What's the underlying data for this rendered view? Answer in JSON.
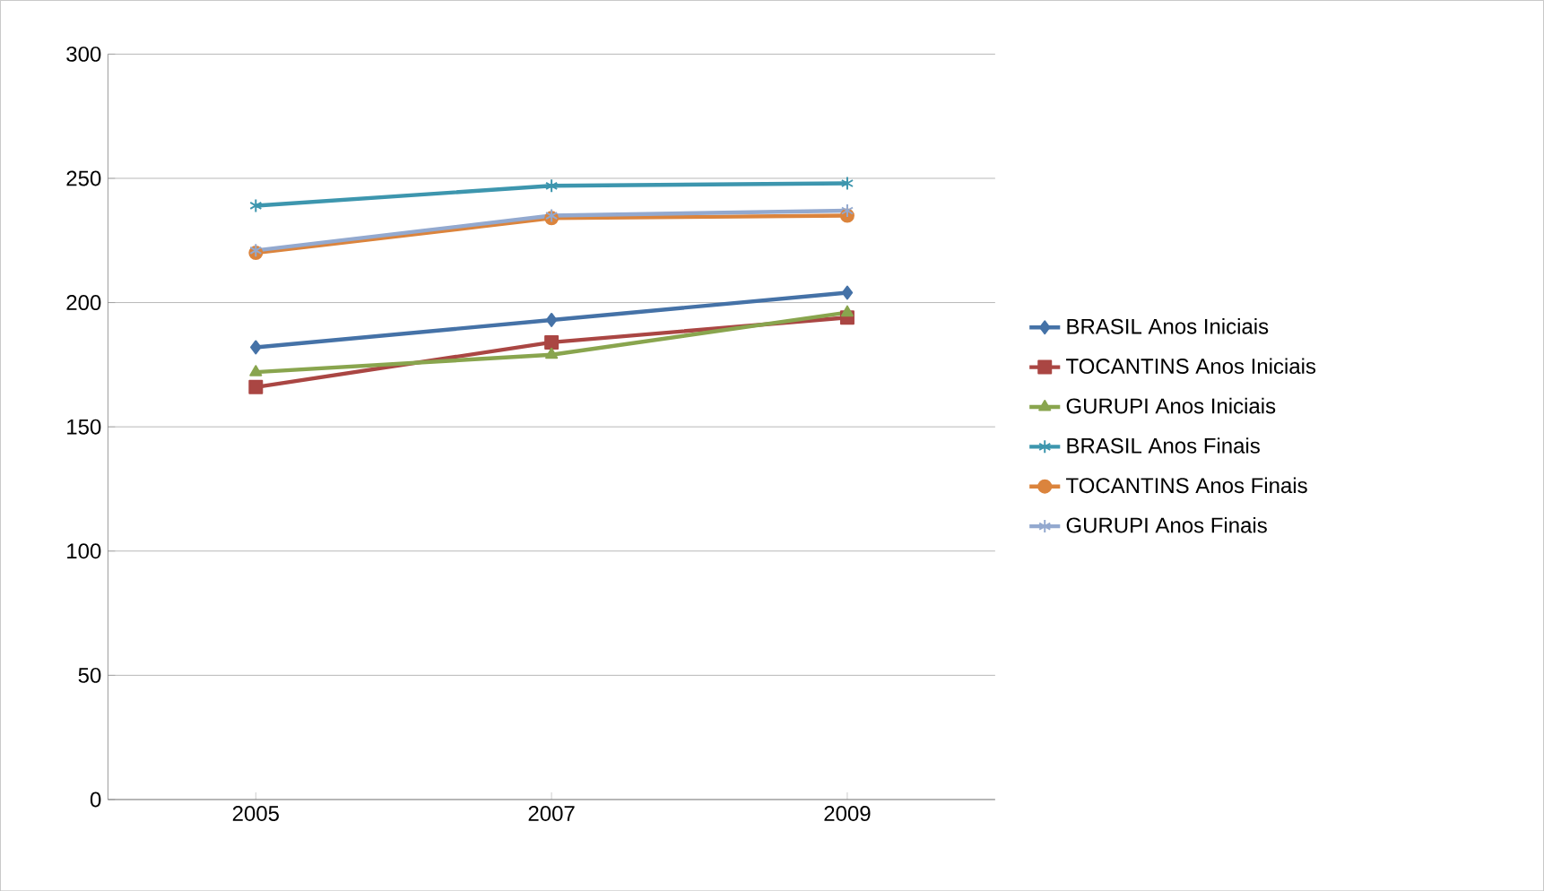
{
  "chart_data": {
    "type": "line",
    "categories": [
      "2005",
      "2007",
      "2009"
    ],
    "series": [
      {
        "name": "BRASIL Anos Iniciais",
        "color": "#4572a7",
        "marker": "diamond",
        "values": [
          182,
          193,
          204
        ]
      },
      {
        "name": "TOCANTINS Anos Iniciais",
        "color": "#aa4643",
        "marker": "square",
        "values": [
          166,
          184,
          194
        ]
      },
      {
        "name": "GURUPI Anos Iniciais",
        "color": "#89a54e",
        "marker": "triangle",
        "values": [
          172,
          179,
          196
        ]
      },
      {
        "name": "BRASIL Anos Finais",
        "color": "#3d96ae",
        "marker": "cross",
        "values": [
          239,
          247,
          248
        ]
      },
      {
        "name": "TOCANTINS Anos Finais",
        "color": "#db843d",
        "marker": "circle",
        "values": [
          220,
          234,
          235
        ]
      },
      {
        "name": "GURUPI Anos Finais",
        "color": "#93a9cf",
        "marker": "cross",
        "values": [
          221,
          235,
          237
        ]
      }
    ],
    "ylim": [
      0,
      300
    ],
    "yticks": [
      0,
      50,
      100,
      150,
      200,
      250,
      300
    ],
    "grid": "y",
    "legend": "right",
    "line_style": "solid"
  }
}
